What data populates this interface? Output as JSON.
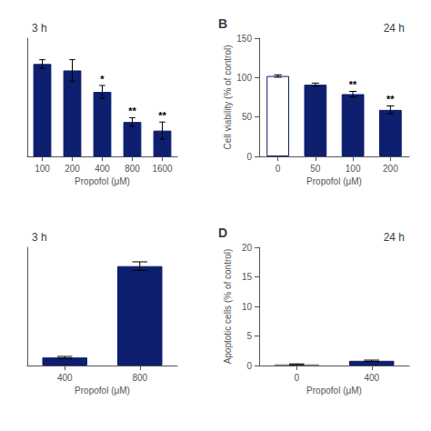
{
  "chart_data": [
    {
      "type": "bar",
      "title": "3 h",
      "xlabel": "Propofol (μM)",
      "categories": [
        "100",
        "200",
        "400",
        "800",
        "1600"
      ],
      "values": [
        113,
        110,
        100,
        86,
        82
      ],
      "errors": [
        2.0,
        5.0,
        3.0,
        2.0,
        4.0
      ],
      "annotations": [
        {
          "category": "400",
          "text": "*"
        },
        {
          "category": "800",
          "text": "**"
        },
        {
          "category": "1600",
          "text": "**"
        }
      ],
      "color": "#0d1f6e",
      "ylim": [
        70,
        125
      ],
      "tick_labels": "x",
      "grid": false
    },
    {
      "type": "bar",
      "title": "24 h",
      "panel_label": "B",
      "xlabel": "Propofol (μM)",
      "ylabel": "Cell viability (% of control)",
      "categories": [
        "0",
        "50",
        "100",
        "200"
      ],
      "values": [
        102,
        91,
        79,
        59
      ],
      "errors": [
        1.5,
        2.0,
        3.5,
        5.0
      ],
      "annotations": [
        {
          "category": "100",
          "text": "**"
        },
        {
          "category": "200",
          "text": "**"
        }
      ],
      "color": "#0d1f6e",
      "colors": [
        "white",
        "#0d1f6e",
        "#0d1f6e",
        "#0d1f6e"
      ],
      "ylim": [
        0,
        150
      ],
      "yticks": [
        0,
        50,
        100,
        150
      ],
      "grid": false
    },
    {
      "type": "bar",
      "title": "3 h",
      "xlabel": "Propofol (μM)",
      "categories": [
        "400",
        "800"
      ],
      "values": [
        1.5,
        18.5
      ],
      "errors": [
        0.2,
        0.8
      ],
      "color": "#0d1f6e",
      "ylim": [
        0,
        22
      ],
      "tick_labels": "x",
      "grid": false
    },
    {
      "type": "bar",
      "title": "24 h",
      "panel_label": "D",
      "xlabel": "Propofol (μM)",
      "ylabel": "Apoptotic cells (% of control)",
      "categories": [
        "0",
        "400"
      ],
      "values": [
        0.2,
        0.8
      ],
      "errors": [
        0.08,
        0.12
      ],
      "colors": [
        "#888888",
        "#0d1f6e"
      ],
      "ylim": [
        0,
        20
      ],
      "yticks": [
        0,
        5,
        10,
        15,
        20
      ],
      "grid": false
    }
  ]
}
